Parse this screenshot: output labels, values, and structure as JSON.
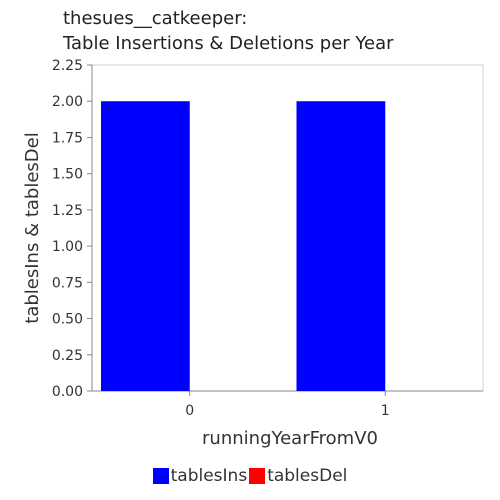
{
  "chart_data": {
    "type": "bar",
    "title": [
      "thesues__catkeeper:",
      "Table Insertions & Deletions per Year"
    ],
    "xlabel": "runningYearFromV0",
    "ylabel": "tablesIns & tablesDel",
    "categories": [
      "0",
      "1"
    ],
    "ylim": [
      0,
      2.25
    ],
    "yticks": [
      "0.00",
      "0.25",
      "0.50",
      "0.75",
      "1.00",
      "1.25",
      "1.50",
      "1.75",
      "2.00",
      "2.25"
    ],
    "grid": false,
    "legend_position": "bottom",
    "series": [
      {
        "name": "tablesIns",
        "values": [
          2,
          2
        ],
        "color": "#0000ff"
      },
      {
        "name": "tablesDel",
        "values": [
          0,
          0
        ],
        "color": "#ff0000"
      }
    ]
  }
}
